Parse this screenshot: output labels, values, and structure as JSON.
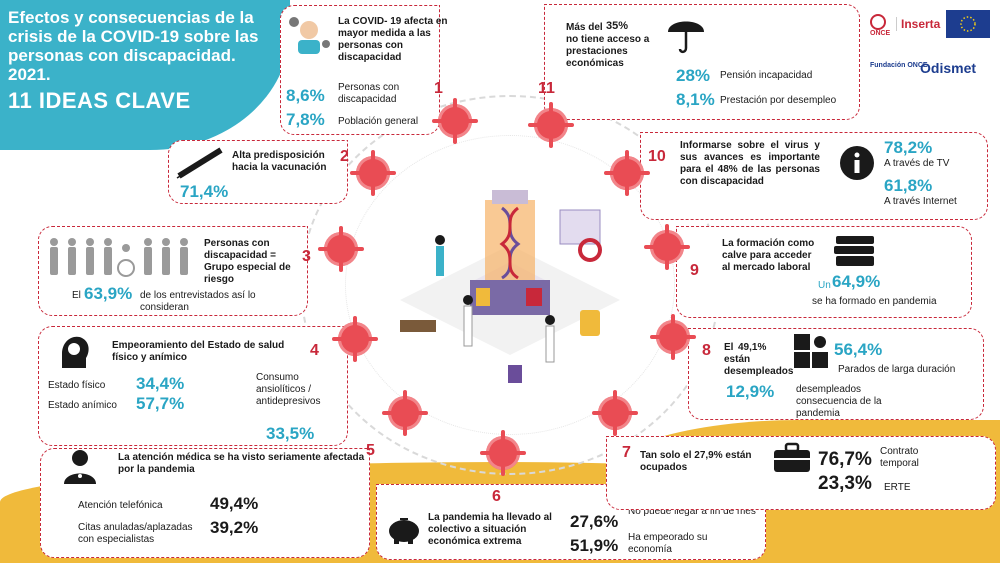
{
  "header": {
    "title": "Efectos y consecuencias de la crisis de la COVID-19 sobre las personas con discapacidad. 2021.",
    "subtitle": "11 IDEAS CLAVE"
  },
  "logos": {
    "inserta": "Inserta",
    "fundacion_once": "Fundación ONCE",
    "odismet": "Odismet",
    "once": "ONCE"
  },
  "colors": {
    "teal": "#3bb2c9",
    "yellow": "#f0ba3b",
    "red": "#c8283a",
    "virus": "#e94c54",
    "pct": "#2aa5c4"
  },
  "ideas": {
    "i1": {
      "num": "1",
      "text": "La COVID- 19 afecta en mayor medida a las personas con discapacidad",
      "v1": "8,6%",
      "l1": "Personas con discapacidad",
      "v2": "7,8%",
      "l2": "Población general"
    },
    "i2": {
      "num": "2",
      "text": "Alta predisposición hacia la vacunación",
      "v1": "71,4%"
    },
    "i3": {
      "num": "3",
      "text": "Personas con discapacidad = Grupo especial de riesgo",
      "pre": "El",
      "v1": "63,9%",
      "post": "de los entrevistados así lo consideran"
    },
    "i4": {
      "num": "4",
      "text": "Empeoramiento del Estado de salud físico y anímico",
      "l1": "Estado físico",
      "v1": "34,4%",
      "l2": "Estado anímico",
      "v2": "57,7%",
      "l3": "Consumo ansiolíticos / antidepresivos",
      "v3": "33,5%"
    },
    "i5": {
      "num": "5",
      "text": "La atención médica se ha visto seriamente afectada por la pandemia",
      "l1": "Atención telefónica",
      "v1": "49,4%",
      "l2": "Citas anuladas/aplazadas con especialistas",
      "v2": "39,2%"
    },
    "i6": {
      "num": "6",
      "text": "La pandemia ha llevado al colectivo a situación económica extrema",
      "v1": "27,6%",
      "l1": "No puede llegar a fin de mes",
      "v2": "51,9%",
      "l2": "Ha empeorado su economía"
    },
    "i7": {
      "num": "7",
      "text": "Tan solo el 27,9% están ocupados",
      "v1": "76,7%",
      "l1": "Contrato temporal",
      "v2": "23,3%",
      "l2": "ERTE"
    },
    "i8": {
      "num": "8",
      "text_pre": "El",
      "text_pct": "49,1%",
      "text_post": "están desempleados",
      "v1": "56,4%",
      "l1": "Parados de larga duración",
      "v2": "12,9%",
      "l2": "desempleados consecuencia de la pandemia"
    },
    "i9": {
      "num": "9",
      "text": "La formación como calve para acceder al mercado laboral",
      "pre": "Un",
      "v1": "64,9%",
      "l1": "se ha formado en pandemia"
    },
    "i10": {
      "num": "10",
      "text": "Informarse sobre el virus y sus avances es importante para el 48% de las personas con discapacidad",
      "v1": "78,2%",
      "l1": "A través de TV",
      "v2": "61,8%",
      "l2": "A través Internet"
    },
    "i11": {
      "num": "11",
      "text_pre": "Más del",
      "text_pct": "35%",
      "text_post": "no tiene acceso a prestaciones económicas",
      "v1": "28%",
      "l1": "Pensión incapacidad",
      "v2": "8,1%",
      "l2": "Prestación por desempleo"
    }
  }
}
